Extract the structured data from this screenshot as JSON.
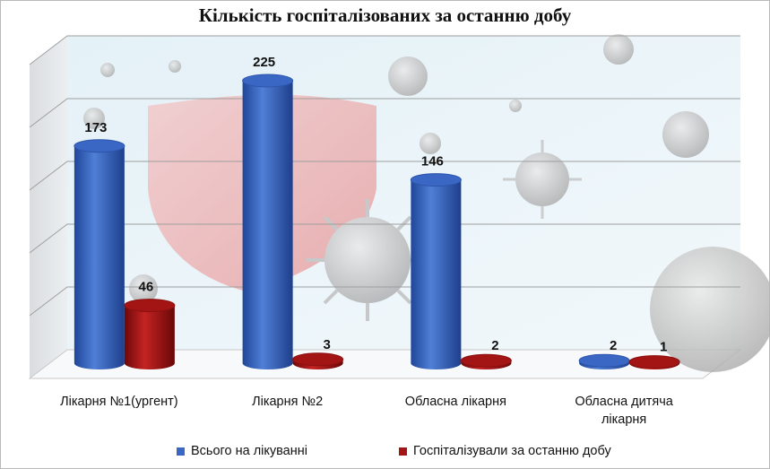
{
  "chart_data": {
    "type": "bar",
    "title": "Кількість госпіталізованих за останню добу",
    "categories": [
      "Лікарня №1(ургент)",
      "Лікарня №2",
      "Обласна лікарня",
      "Обласна дитяча лікарня"
    ],
    "series": [
      {
        "name": "Всього на лікуванні",
        "values": [
          173,
          225,
          146,
          2
        ],
        "color": "#3a66c4"
      },
      {
        "name": "Госпіталізували за останню добу",
        "values": [
          46,
          3,
          2,
          1
        ],
        "color": "#a31414"
      }
    ],
    "ylim": [
      0,
      250
    ],
    "grid": true,
    "legend_position": "bottom",
    "bar_shape": "cylinder-3d"
  }
}
